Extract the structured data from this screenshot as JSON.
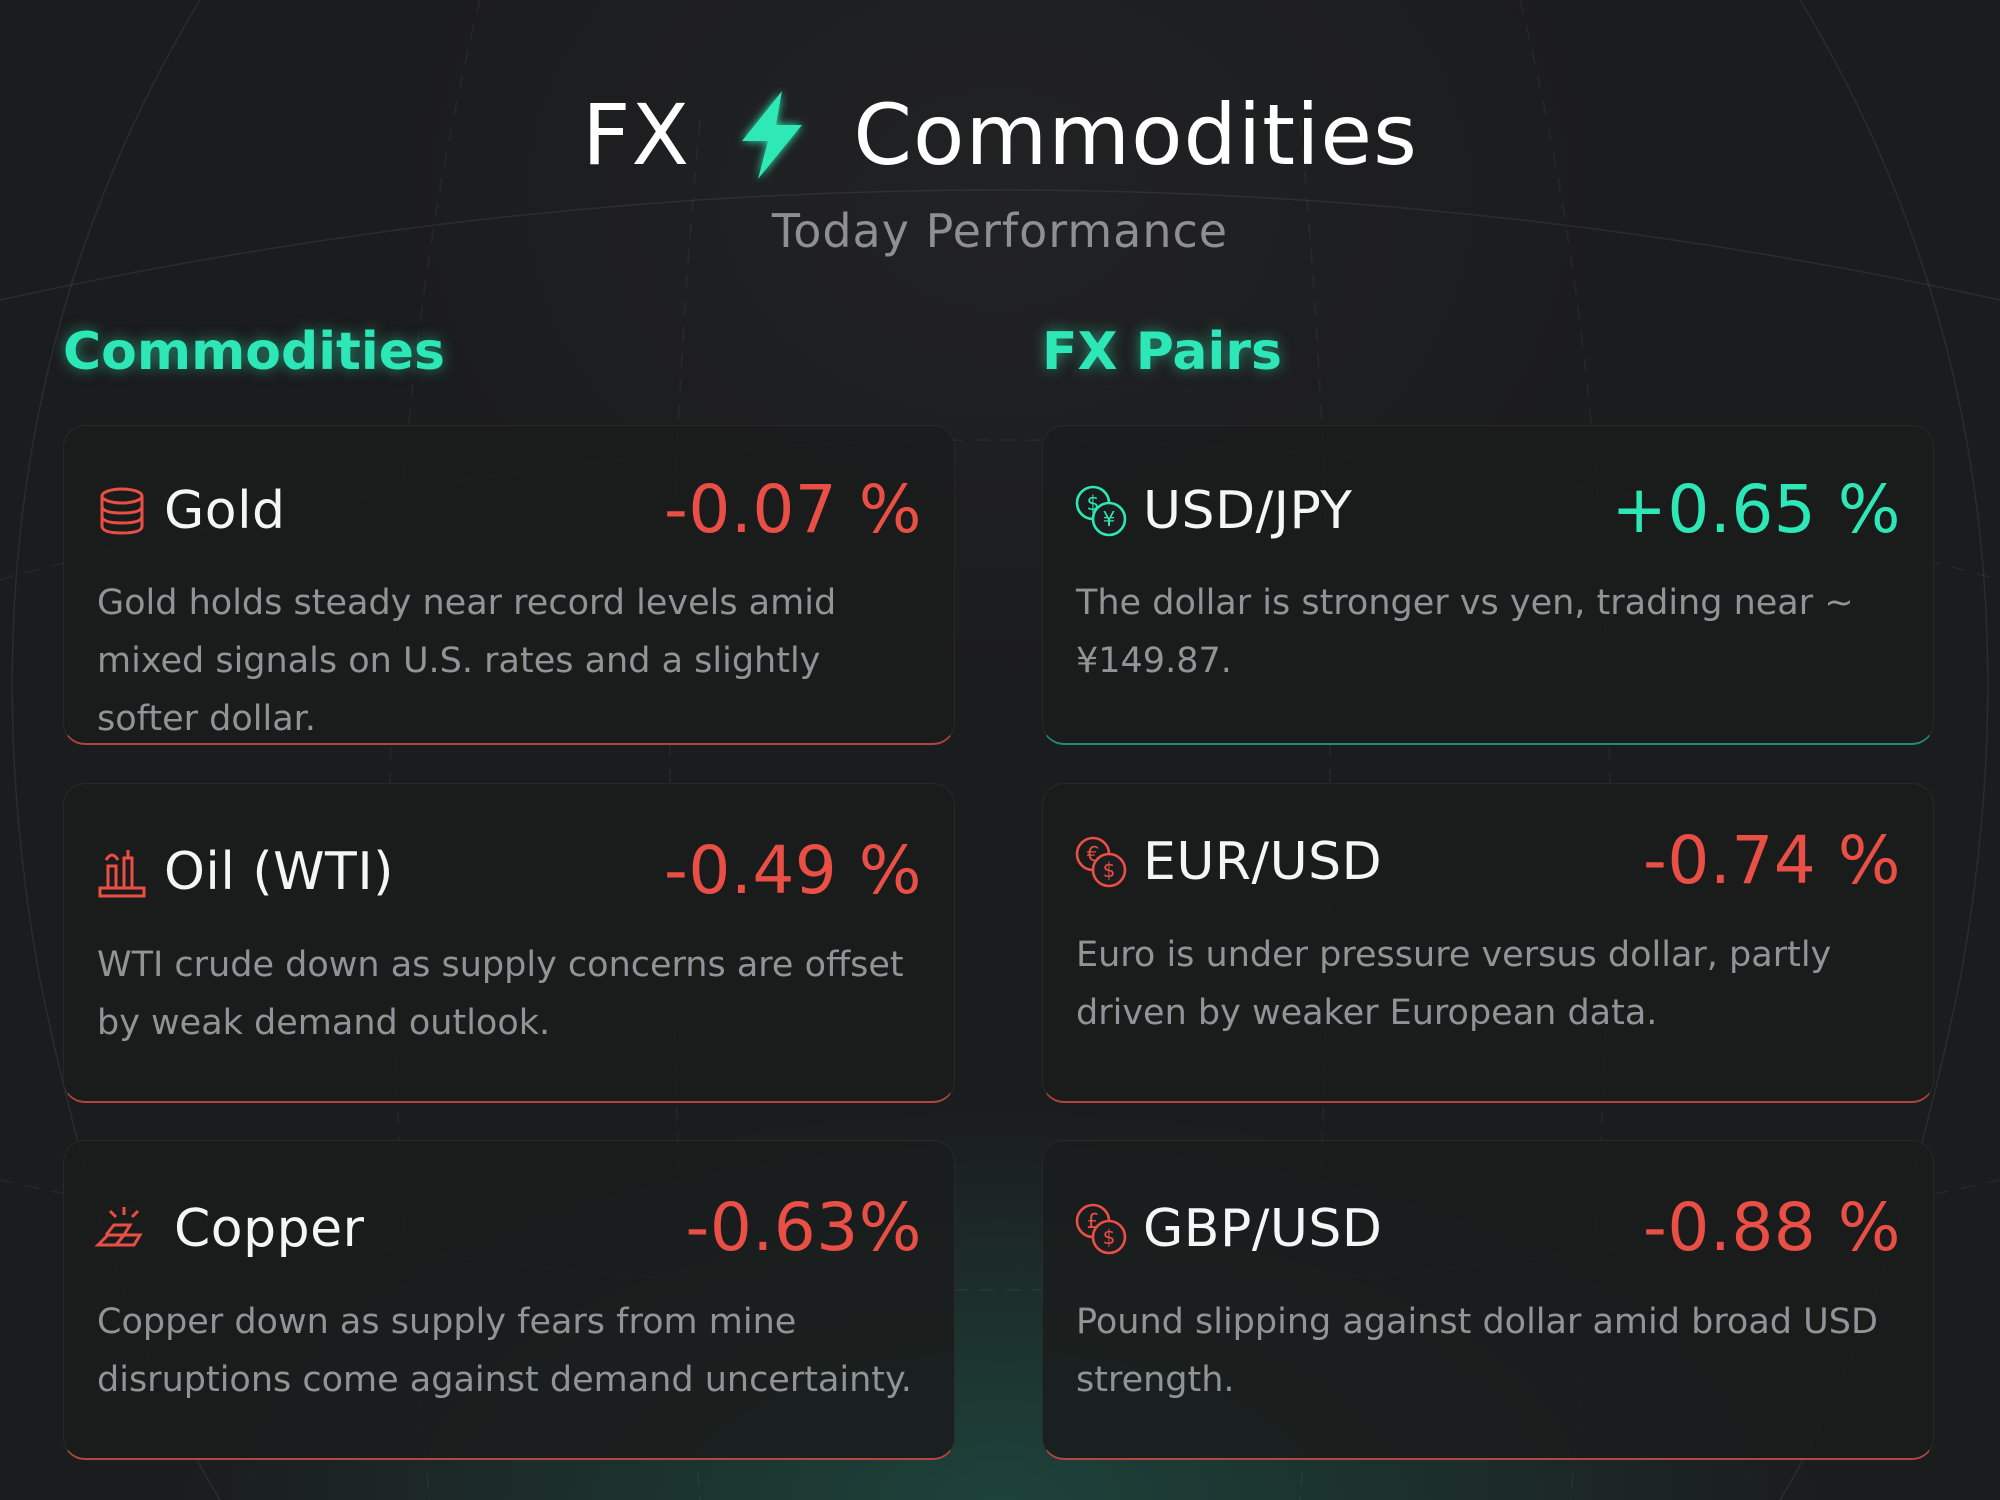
{
  "header": {
    "title_left": "FX",
    "title_right": "Commodities",
    "subtitle": "Today Performance"
  },
  "colors": {
    "accent": "#2de8b6",
    "negative": "#ea4f45",
    "background": "#1b1c1d"
  },
  "sections": {
    "commodities": {
      "title": "Commodities",
      "items": [
        {
          "name": "Gold",
          "change": "-0.07 %",
          "trend": "negative",
          "icon": "gold-coins-icon",
          "description": "Gold holds steady near record levels amid mixed signals on U.S. rates and a slightly softer dollar."
        },
        {
          "name": "Oil (WTI)",
          "change": "-0.49 %",
          "trend": "negative",
          "icon": "oil-rig-icon",
          "description": "WTI crude down as supply concerns are offset by weak demand outlook."
        },
        {
          "name": "Copper",
          "change": "-0.63%",
          "trend": "negative",
          "icon": "copper-bars-icon",
          "description": "Copper down as supply fears from mine disruptions come against demand uncertainty."
        }
      ]
    },
    "fx": {
      "title": "FX Pairs",
      "items": [
        {
          "name": "USD/JPY",
          "change": "+0.65 %",
          "trend": "positive",
          "icon": "dollar-yen-icon",
          "description": "The dollar is stronger vs yen, trading near ~ ¥149.87."
        },
        {
          "name": "EUR/USD",
          "change": "-0.74 %",
          "trend": "negative",
          "icon": "euro-dollar-icon",
          "description": "Euro is under pressure versus dollar, partly driven by weaker European data."
        },
        {
          "name": "GBP/USD",
          "change": "-0.88 %",
          "trend": "negative",
          "icon": "pound-dollar-icon",
          "description": "Pound slipping against dollar amid broad USD strength."
        }
      ]
    }
  }
}
